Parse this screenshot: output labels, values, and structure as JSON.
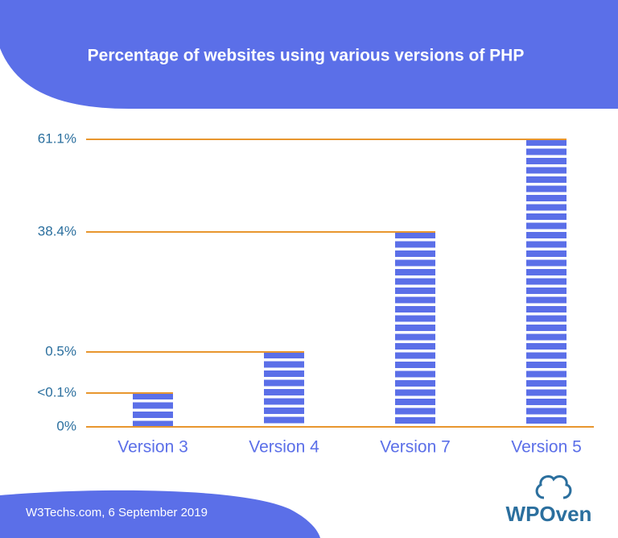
{
  "chart_data": {
    "type": "bar",
    "title": "Percentage of websites using various versions of PHP",
    "categories": [
      "Version 3",
      "Version 4",
      "Version 7",
      "Version 5"
    ],
    "values": [
      0.1,
      0.5,
      38.4,
      61.1
    ],
    "color": "#5b6fe8",
    "line_color": "#e8962e",
    "yticks": [
      {
        "value": 0,
        "label": "0%"
      },
      {
        "value": 0.1,
        "label": "<0.1%"
      },
      {
        "value": 0.5,
        "label": "0.5%"
      },
      {
        "value": 38.4,
        "label": "38.4%"
      },
      {
        "value": 61.1,
        "label": "61.1%"
      }
    ],
    "ylim": [
      0,
      61.1
    ],
    "source": "W3Techs.com, 6 September 2019",
    "brand": "WPOven"
  }
}
